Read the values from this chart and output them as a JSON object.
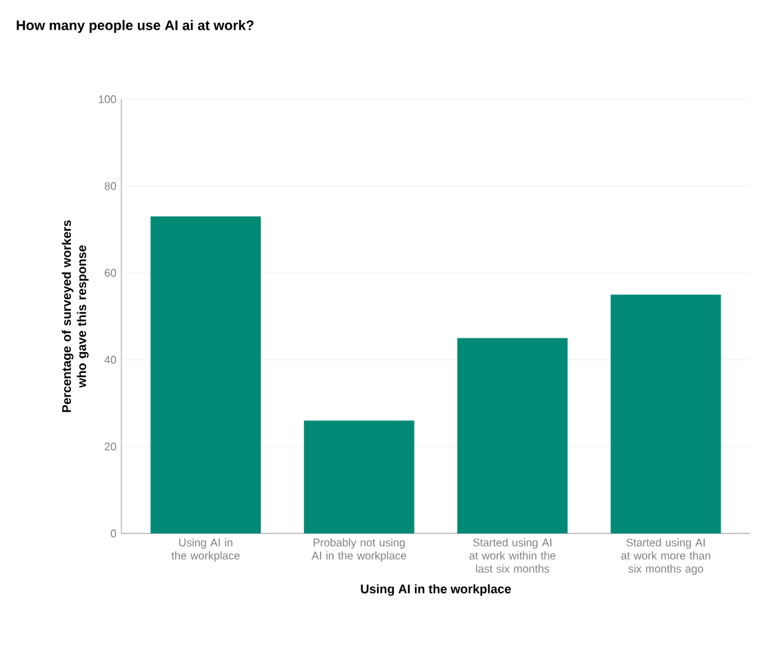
{
  "chart_data": {
    "type": "bar",
    "title": "How many people use AI ai at work?",
    "xlabel": "Using AI in the workplace",
    "ylabel": "Percentage of surveyed workers who gave this response",
    "categories": [
      "Using AI in the workplace",
      "Probably not using AI in the workplace",
      "Started using AI at work within the last six months",
      "Started using AI at work more than six months ago"
    ],
    "values": [
      73,
      26,
      45,
      55
    ],
    "color": "#008a76",
    "ylim": [
      0,
      100
    ],
    "yticks": [
      0,
      20,
      40,
      60,
      80,
      100
    ],
    "grid": "y"
  }
}
